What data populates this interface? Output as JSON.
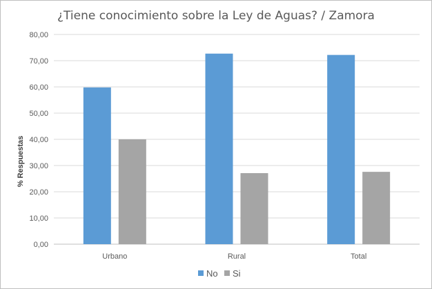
{
  "chart_data": {
    "type": "bar",
    "title": "¿Tiene conocimiento sobre la Ley de Aguas? / Zamora",
    "ylabel": "% Respuestas",
    "xlabel": "",
    "categories": [
      "Urbano",
      "Rural",
      "Total"
    ],
    "series": [
      {
        "name": "No",
        "values": [
          59.8,
          72.7,
          72.2
        ],
        "color": "#5b9bd5"
      },
      {
        "name": "Si",
        "values": [
          40.0,
          27.1,
          27.6
        ],
        "color": "#a5a5a5"
      }
    ],
    "ylim": [
      0,
      80
    ],
    "yticks": [
      "0,00",
      "10,00",
      "20,00",
      "30,00",
      "40,00",
      "50,00",
      "60,00",
      "70,00",
      "80,00"
    ],
    "ytick_values": [
      0,
      10,
      20,
      30,
      40,
      50,
      60,
      70,
      80
    ],
    "grid": true,
    "gridColor": "#d9d9d9",
    "legend": "bottom"
  }
}
